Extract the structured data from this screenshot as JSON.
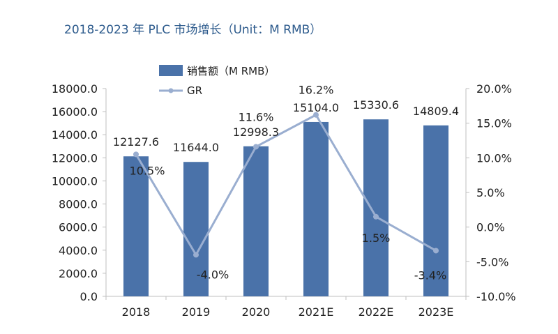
{
  "chart_data": {
    "type": "bar",
    "title": "2018-2023 年 PLC 市场增长（Unit：M RMB）",
    "categories": [
      "2018",
      "2019",
      "2020",
      "2021E",
      "2022E",
      "2023E"
    ],
    "series": [
      {
        "name": "销售额（M RMB）",
        "type": "bar",
        "axis": "left",
        "values": [
          12127.6,
          11644.0,
          12998.3,
          15104.0,
          15330.6,
          14809.4
        ],
        "labels": [
          "12127.6",
          "11644.0",
          "12998.3",
          "15104.0",
          "15330.6",
          "14809.4"
        ],
        "color": "#4a72a9"
      },
      {
        "name": "GR",
        "type": "line",
        "axis": "right",
        "values": [
          10.5,
          -4.0,
          11.6,
          16.2,
          1.5,
          -3.4
        ],
        "labels": [
          "10.5%",
          "-4.0%",
          "11.6%",
          "16.2%",
          "1.5%",
          "-3.4%"
        ],
        "color": "#9aaed0"
      }
    ],
    "y_left": {
      "ylim": [
        0,
        18000
      ],
      "ticks": [
        "18000.0",
        "16000.0",
        "14000.0",
        "12000.0",
        "10000.0",
        "8000.0",
        "6000.0",
        "4000.0",
        "2000.0",
        "0.0"
      ]
    },
    "y_right": {
      "ylim": [
        -10,
        20
      ],
      "ticks": [
        "20.0%",
        "15.0%",
        "10.0%",
        "5.0%",
        "0.0%",
        "-5.0%",
        "-10.0%"
      ]
    },
    "grid": false,
    "legend": "top-left",
    "colors": {
      "title": "#2c5a8c",
      "axis": "#bfbfbf",
      "text": "#222222"
    }
  }
}
